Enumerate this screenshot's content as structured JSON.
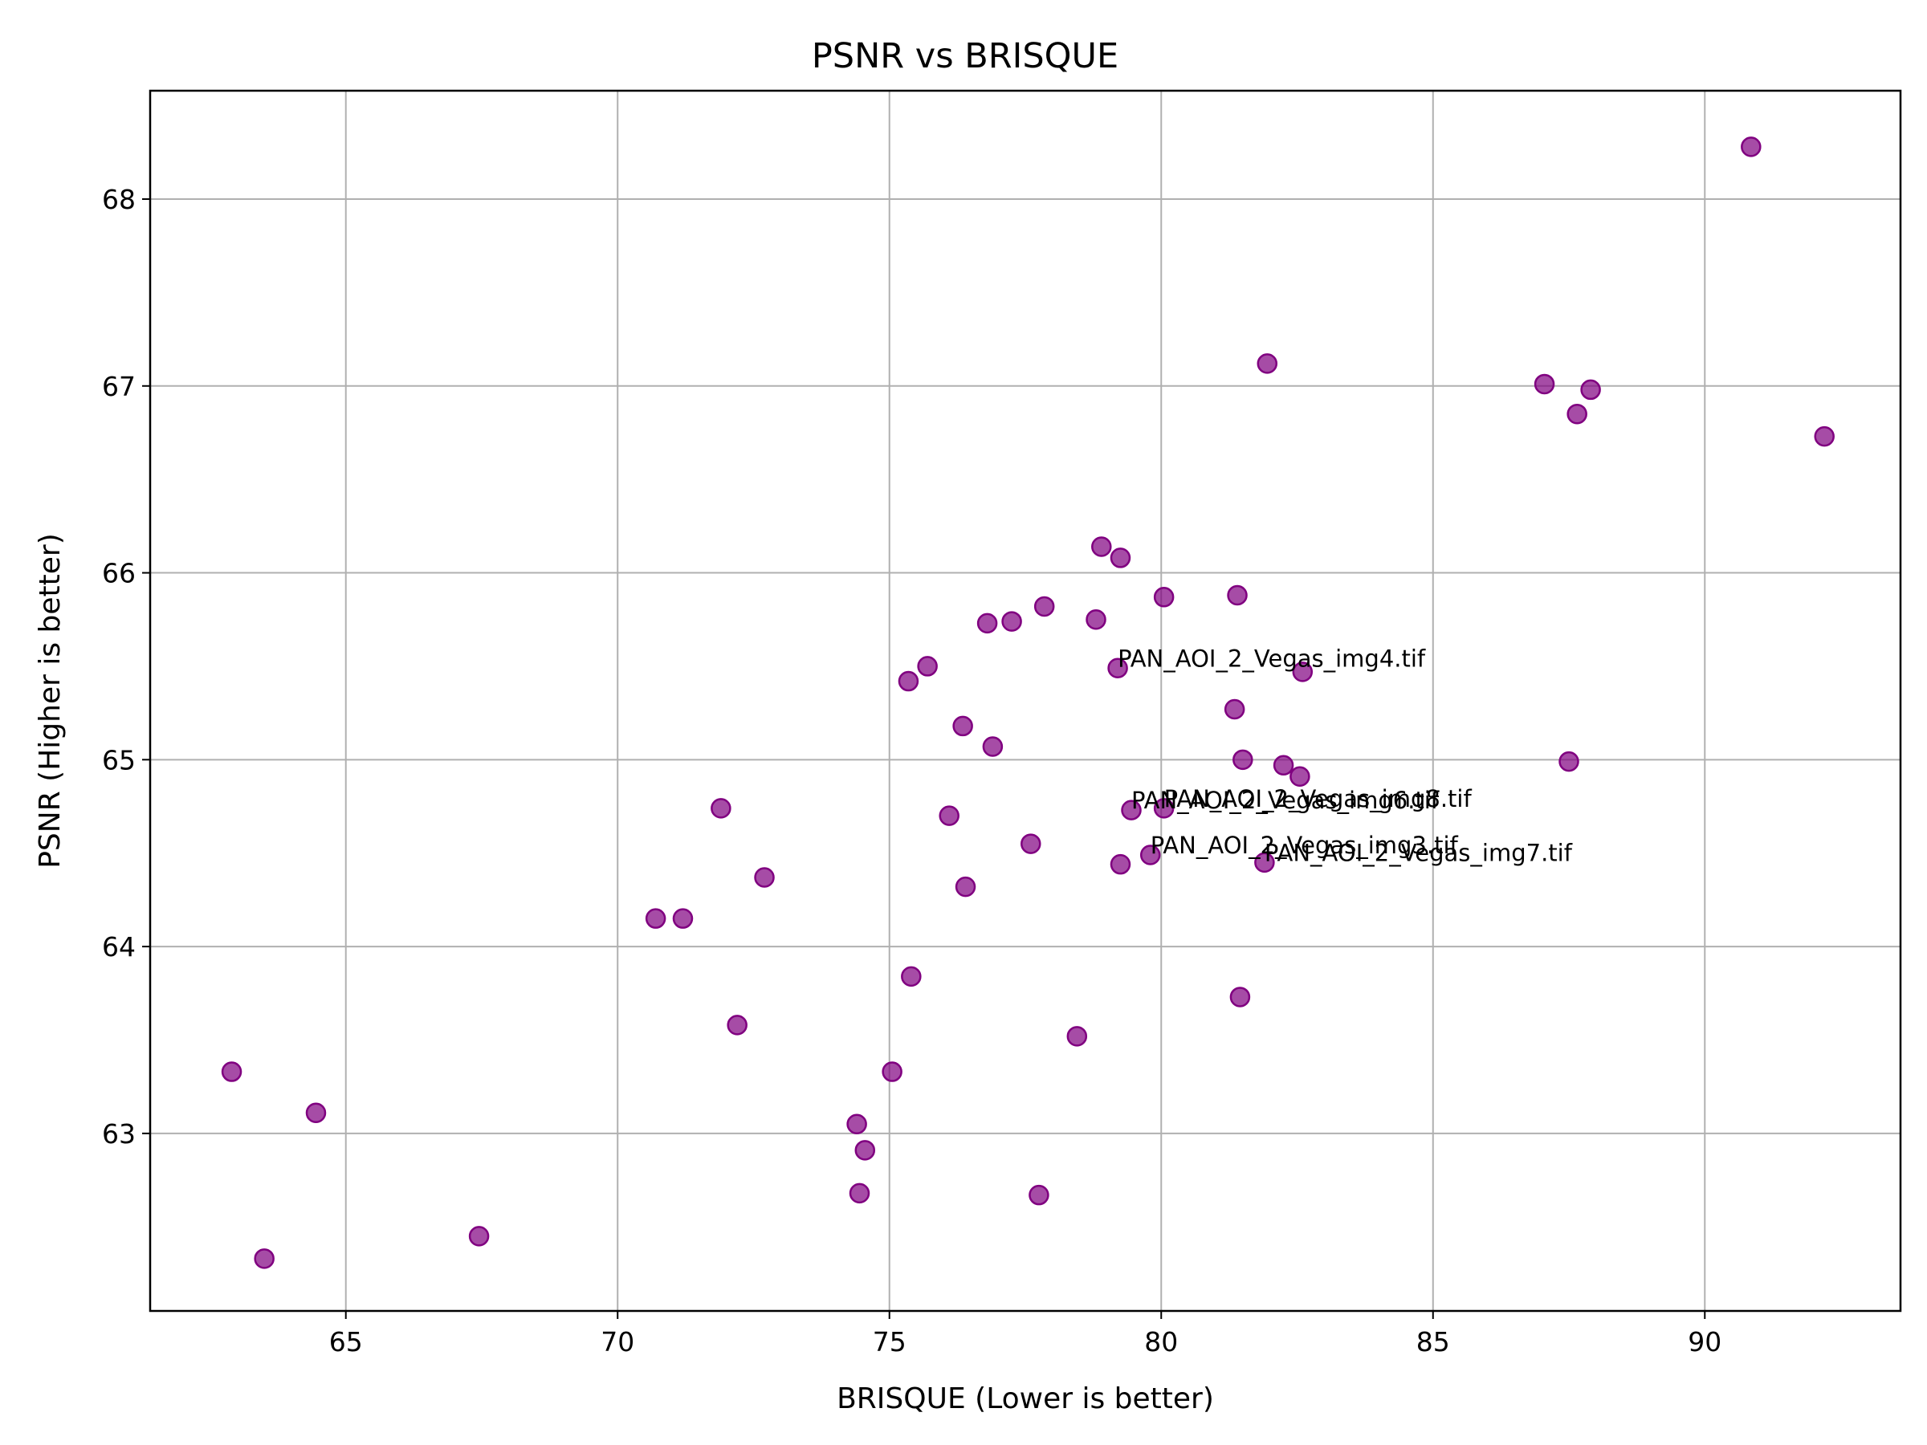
{
  "chart_data": {
    "type": "scatter",
    "title": "PSNR vs BRISQUE",
    "xlabel": "BRISQUE (Lower is better)",
    "ylabel": "PSNR (Higher is better)",
    "xlim": [
      61.4,
      93.6
    ],
    "ylim": [
      62.05,
      68.58
    ],
    "xticks": [
      65,
      70,
      75,
      80,
      85,
      90
    ],
    "yticks": [
      63,
      64,
      65,
      66,
      67,
      68
    ],
    "grid": true,
    "marker_color": "#800080",
    "points": [
      {
        "x": 62.9,
        "y": 63.33
      },
      {
        "x": 63.5,
        "y": 62.33
      },
      {
        "x": 64.45,
        "y": 63.11
      },
      {
        "x": 67.45,
        "y": 62.45
      },
      {
        "x": 70.7,
        "y": 64.15
      },
      {
        "x": 71.2,
        "y": 64.15
      },
      {
        "x": 71.9,
        "y": 64.74
      },
      {
        "x": 72.2,
        "y": 63.58
      },
      {
        "x": 72.7,
        "y": 64.37
      },
      {
        "x": 74.4,
        "y": 63.05
      },
      {
        "x": 74.45,
        "y": 62.68
      },
      {
        "x": 74.55,
        "y": 62.91
      },
      {
        "x": 75.05,
        "y": 63.33
      },
      {
        "x": 75.35,
        "y": 65.42
      },
      {
        "x": 75.4,
        "y": 63.84
      },
      {
        "x": 75.7,
        "y": 65.5
      },
      {
        "x": 76.1,
        "y": 64.7
      },
      {
        "x": 76.35,
        "y": 65.18
      },
      {
        "x": 76.4,
        "y": 64.32
      },
      {
        "x": 76.8,
        "y": 65.73
      },
      {
        "x": 76.9,
        "y": 65.07
      },
      {
        "x": 77.25,
        "y": 65.74
      },
      {
        "x": 77.6,
        "y": 64.55
      },
      {
        "x": 77.75,
        "y": 62.67
      },
      {
        "x": 77.85,
        "y": 65.82
      },
      {
        "x": 78.45,
        "y": 63.52
      },
      {
        "x": 78.8,
        "y": 65.75
      },
      {
        "x": 78.9,
        "y": 66.14
      },
      {
        "x": 79.2,
        "y": 65.49,
        "label": "PAN_AOI_2_Vegas_img4.tif"
      },
      {
        "x": 79.25,
        "y": 66.08
      },
      {
        "x": 79.25,
        "y": 64.44
      },
      {
        "x": 79.45,
        "y": 64.73,
        "label": "PAN_AOI_2_Vegas_img6.tif"
      },
      {
        "x": 79.8,
        "y": 64.49,
        "label": "PAN_AOI_2_Vegas_img3.tif"
      },
      {
        "x": 80.05,
        "y": 65.87
      },
      {
        "x": 80.05,
        "y": 64.74,
        "label": "PAN_AOI_2_Vegas_img8.tif"
      },
      {
        "x": 81.35,
        "y": 65.27
      },
      {
        "x": 81.4,
        "y": 65.88
      },
      {
        "x": 81.45,
        "y": 63.73
      },
      {
        "x": 81.5,
        "y": 65.0
      },
      {
        "x": 81.9,
        "y": 64.45,
        "label": "PAN_AOI_2_Vegas_img7.tif"
      },
      {
        "x": 81.95,
        "y": 67.12
      },
      {
        "x": 82.25,
        "y": 64.97
      },
      {
        "x": 82.55,
        "y": 64.91
      },
      {
        "x": 82.6,
        "y": 65.47
      },
      {
        "x": 87.05,
        "y": 67.01
      },
      {
        "x": 87.5,
        "y": 64.99
      },
      {
        "x": 87.65,
        "y": 66.85
      },
      {
        "x": 87.9,
        "y": 66.98
      },
      {
        "x": 90.85,
        "y": 68.28
      },
      {
        "x": 92.2,
        "y": 66.73
      }
    ]
  }
}
